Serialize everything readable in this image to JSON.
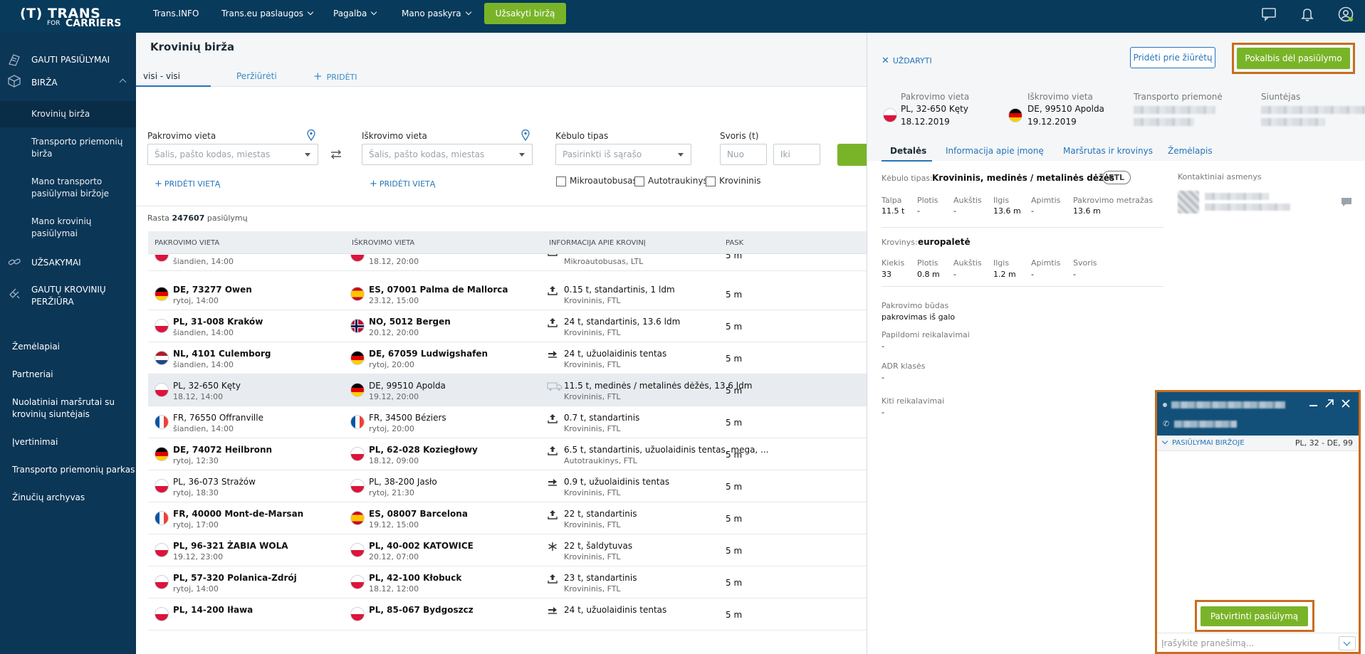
{
  "topbar": {
    "logo_trans": "(T) TRANS",
    "logo_for": "FOR",
    "logo_carriers": "CARRIERS",
    "nav": [
      "Trans.INFO",
      "Trans.eu paslaugos",
      "Pagalba",
      "Mano paskyra"
    ],
    "subscribe_label": "Užsakyti biržą"
  },
  "sidebar": {
    "main_items": [
      "GAUTI PASIŪLYMAI",
      "BIRŽA",
      "UŽSAKYMAI",
      "GAUTŲ KROVINIŲ PERŽIŪRA"
    ],
    "birza_sub": [
      "Krovinių birža",
      "Transporto priemonių birža",
      "Mano transporto pasiūlymai biržoje",
      "Mano krovinių pasiūlymai"
    ],
    "plain_items": [
      "Žemėlapiai",
      "Partneriai",
      "Nuolatiniai maršrutai su krovinių siuntėjais",
      "Įvertinimai",
      "Transporto priemonių parkas",
      "Žinučių archyvas"
    ]
  },
  "main": {
    "title": "Krovinių birža",
    "tabs": {
      "active": "visi - visi",
      "view": "Peržiūrėti",
      "add": "PRIDĖTI"
    },
    "filters": {
      "load_label": "Pakrovimo vieta",
      "load_placeholder": "Šalis, pašto kodas, miestas",
      "unload_label": "Iškrovimo vieta",
      "unload_placeholder": "Šalis, pašto kodas, miestas",
      "add_location": "PRIDĖTI VIETĄ",
      "body_label": "Kėbulo tipas",
      "body_placeholder": "Pasirinkti iš sąrašo",
      "weight_label": "Svoris (t)",
      "weight_from": "Nuo",
      "weight_to": "Iki",
      "checks": [
        "Mikroautobusas",
        "Autotraukinys",
        "Krovininis"
      ]
    },
    "count_prefix": "Rasta",
    "count_value": "247607",
    "count_suffix": "pasiūlymų",
    "columns": [
      "PAKROVIMO VIETA",
      "IŠKROVIMO VIETA",
      "INFORMACIJA APIE KROVINĮ",
      "PASK"
    ],
    "rows": [
      {
        "from_flag": "pl",
        "from": "",
        "from_date": "šiandien, 14:00",
        "to_flag": "pl",
        "to": "",
        "to_date": "18.12, 20:00",
        "cargo": "",
        "cargo_type": "Mikroautobusas, LTL",
        "pay": "5 m",
        "bold": false,
        "icon": "up"
      },
      {
        "from_flag": "de",
        "from": "DE, 73277 Owen",
        "from_date": "rytoj, 14:00",
        "to_flag": "es",
        "to": "ES, 07001 Palma de Mallorca",
        "to_date": "23.12, 15:00",
        "cargo": "0.15 t, standartinis, 1 ldm",
        "cargo_type": "Krovininis, FTL",
        "pay": "5 m",
        "bold": true,
        "icon": "up"
      },
      {
        "from_flag": "pl",
        "from": "PL, 31-008 Kraków",
        "from_date": "šiandien, 14:00",
        "to_flag": "no",
        "to": "NO, 5012 Bergen",
        "to_date": "20.12, 20:00",
        "cargo": "24 t, standartinis, 13.6 ldm",
        "cargo_type": "Krovininis, FTL",
        "pay": "5 m",
        "bold": true,
        "icon": "up"
      },
      {
        "from_flag": "nl",
        "from": "NL, 4101 Culemborg",
        "from_date": "šiandien, 14:00",
        "to_flag": "de",
        "to": "DE, 67059 Ludwigshafen",
        "to_date": "rytoj, 20:00",
        "cargo": "24 t, užuolaidinis tentas",
        "cargo_type": "Krovininis, FTL",
        "pay": "5 m",
        "bold": true,
        "icon": "side"
      },
      {
        "from_flag": "pl",
        "from": "PL, 32-650 Kęty",
        "from_date": "18.12, 14:00",
        "to_flag": "de",
        "to": "DE, 99510 Apolda",
        "to_date": "19.12, 20:00",
        "cargo": "11.5 t, medinės / metalinės dėžės, 13.6 ldm",
        "cargo_type": "Krovininis, FTL",
        "pay": "5 m",
        "bold": false,
        "icon": "truck",
        "selected": true
      },
      {
        "from_flag": "fr",
        "from": "FR, 76550 Offranville",
        "from_date": "šiandien, 14:00",
        "to_flag": "fr",
        "to": "FR, 34500 Béziers",
        "to_date": "rytoj, 20:00",
        "cargo": "0.7 t, standartinis",
        "cargo_type": "Krovininis, FTL",
        "pay": "5 m",
        "bold": false,
        "icon": "up"
      },
      {
        "from_flag": "de",
        "from": "DE, 74072 Heilbronn",
        "from_date": "rytoj, 12:30",
        "to_flag": "pl",
        "to": "PL, 62-028 Koziegłowy",
        "to_date": "18.12, 09:00",
        "cargo": "6.5 t, standartinis, užuolaidinis tentas, mega, ...",
        "cargo_type": "Autotraukinys, FTL",
        "pay": "5 m",
        "bold": true,
        "icon": "up"
      },
      {
        "from_flag": "pl",
        "from": "PL, 36-073 Strażów",
        "from_date": "rytoj, 18:30",
        "to_flag": "pl",
        "to": "PL, 38-200 Jasło",
        "to_date": "rytoj, 21:30",
        "cargo": "0.9 t, užuolaidinis tentas",
        "cargo_type": "Krovininis, FTL",
        "pay": "5 m",
        "bold": false,
        "icon": "side"
      },
      {
        "from_flag": "fr",
        "from": "FR, 40000 Mont-de-Marsan",
        "from_date": "rytoj, 17:00",
        "to_flag": "es",
        "to": "ES, 08007 Barcelona",
        "to_date": "19.12, 15:00",
        "cargo": "22 t, standartinis",
        "cargo_type": "Krovininis, FTL",
        "pay": "5 m",
        "bold": true,
        "icon": "up"
      },
      {
        "from_flag": "pl",
        "from": "PL, 96-321 ŻABIA WOLA",
        "from_date": "19.12, 23:00",
        "to_flag": "pl",
        "to": "PL, 40-002 KATOWICE",
        "to_date": "20.12, 07:00",
        "cargo": "22 t, šaldytuvas",
        "cargo_type": "Krovininis, FTL",
        "pay": "5 m",
        "bold": true,
        "icon": "snow"
      },
      {
        "from_flag": "pl",
        "from": "PL, 57-320 Polanica-Zdrój",
        "from_date": "rytoj, 14:00",
        "to_flag": "pl",
        "to": "PL, 42-100 Kłobuck",
        "to_date": "18.12, 12:00",
        "cargo": "23 t, standartinis",
        "cargo_type": "Krovininis, FTL",
        "pay": "5 m",
        "bold": true,
        "icon": "up"
      },
      {
        "from_flag": "pl",
        "from": "PL, 14-200 Iława",
        "from_date": "",
        "to_flag": "pl",
        "to": "PL, 85-067 Bydgoszcz",
        "to_date": "",
        "cargo": "24 t, užuolaidinis tentas",
        "cargo_type": "",
        "pay": "5 m",
        "bold": true,
        "icon": "side"
      }
    ]
  },
  "panel": {
    "close_label": "UŽDARYTI",
    "add_watch": "Pridėti prie žiūrėtų",
    "talk": "Pokalbis dėl pasiūlymo",
    "load": {
      "label": "Pakrovimo vieta",
      "place": "PL, 32-650 Kęty",
      "date": "18.12.2019"
    },
    "unload": {
      "label": "Iškrovimo vieta",
      "place": "DE, 99510 Apolda",
      "date": "19.12.2019"
    },
    "vehicle_label": "Transporto priemonė",
    "sender_label": "Siuntėjas",
    "tabs": [
      "Detalės",
      "Informacija apie įmonę",
      "Maršrutas ir krovinys",
      "Žemėlapis"
    ],
    "body_label": "Kėbulo tipas:",
    "body_value": "Krovininis, medinės / metalinės dėžės",
    "ftl": "FTL",
    "dims1": [
      {
        "label": "Talpa",
        "value": "11.5 t"
      },
      {
        "label": "Plotis",
        "value": "-"
      },
      {
        "label": "Aukštis",
        "value": "-"
      },
      {
        "label": "Ilgis",
        "value": "13.6 m"
      },
      {
        "label": "Apimtis",
        "value": "-"
      },
      {
        "label": "Pakrovimo metražas",
        "value": "13.6 m"
      }
    ],
    "cargo_label": "Krovinys:",
    "cargo_value": "europaletė",
    "dims2": [
      {
        "label": "Kiekis",
        "value": "33"
      },
      {
        "label": "Plotis",
        "value": "0.8 m"
      },
      {
        "label": "Aukštis",
        "value": "-"
      },
      {
        "label": "Ilgis",
        "value": "1.2 m"
      },
      {
        "label": "Apimtis",
        "value": "-"
      },
      {
        "label": "Svoris",
        "value": "-"
      }
    ],
    "loading_method_label": "Pakrovimo būdas",
    "loading_method": "pakrovimas iš galo",
    "extra_req_label": "Papildomi reikalavimai",
    "extra_req": "-",
    "adr_label": "ADR klasės",
    "adr": "-",
    "other_req_label": "Kiti reikalavimai",
    "other_req": "-",
    "contacts_label": "Kontaktiniai asmenys"
  },
  "chat": {
    "offers_label": "PASIŪLYMAI BIRŽOJE",
    "route": "PL, 32 - DE, 99",
    "confirm": "Patvirtinti pasiūlymą",
    "input_placeholder": "Įrašykite pranešimą..."
  },
  "colors": {
    "topbar": "#073a5b",
    "sidebar": "#0b3656",
    "accent_green": "#79b428",
    "highlight": "#c96d1e",
    "link": "#2774b8"
  }
}
